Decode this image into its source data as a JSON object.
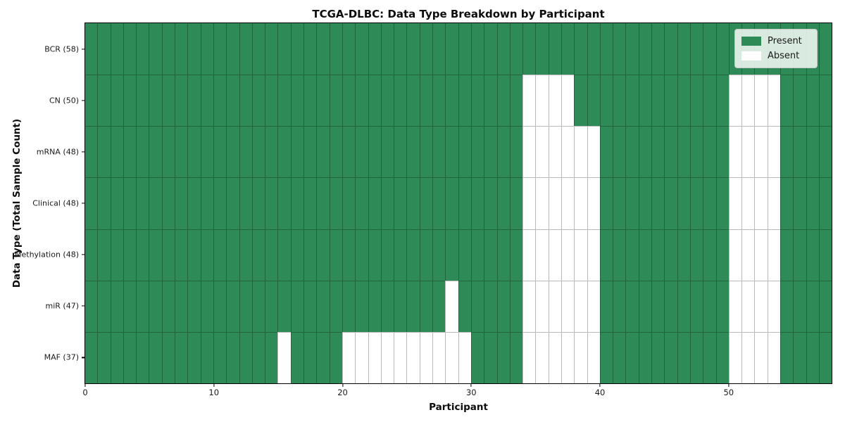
{
  "title": "TCGA-DLBC: Data Type Breakdown by Participant",
  "xlabel": "Participant",
  "ylabel": "Data Type (Total Sample Count)",
  "legend": {
    "present_label": "Present",
    "absent_label": "Absent"
  },
  "colors": {
    "present": "#2E8B57",
    "absent": "#FFFFFF",
    "grid": "rgba(0,0,0,0.27)"
  },
  "chart_data": {
    "type": "heatmap",
    "title": "TCGA-DLBC: Data Type Breakdown by Participant",
    "xlabel": "Participant",
    "ylabel": "Data Type (Total Sample Count)",
    "x_range": [
      0,
      58
    ],
    "x_ticks": [
      0,
      10,
      20,
      30,
      40,
      50
    ],
    "grid": true,
    "legend_position": "upper right",
    "legend": [
      {
        "label": "Present",
        "color": "#2E8B57"
      },
      {
        "label": "Absent",
        "color": "#FFFFFF"
      }
    ],
    "value_encoding": {
      "present": 1,
      "absent": 0
    },
    "rows": [
      {
        "name": "BCR",
        "label": "BCR (58)",
        "total_samples": 58,
        "absent_participants": []
      },
      {
        "name": "CN",
        "label": "CN (50)",
        "total_samples": 50,
        "absent_participants": [
          34,
          35,
          36,
          37,
          50,
          51,
          52,
          53
        ]
      },
      {
        "name": "mRNA",
        "label": "mRNA (48)",
        "total_samples": 48,
        "absent_participants": [
          34,
          35,
          36,
          37,
          38,
          39,
          50,
          51,
          52,
          53
        ]
      },
      {
        "name": "Clinical",
        "label": "Clinical (48)",
        "total_samples": 48,
        "absent_participants": [
          34,
          35,
          36,
          37,
          38,
          39,
          50,
          51,
          52,
          53
        ]
      },
      {
        "name": "Methylation",
        "label": "Methylation (48)",
        "total_samples": 48,
        "absent_participants": [
          34,
          35,
          36,
          37,
          38,
          39,
          50,
          51,
          52,
          53
        ]
      },
      {
        "name": "miR",
        "label": "miR (47)",
        "total_samples": 47,
        "absent_participants": [
          28,
          34,
          35,
          36,
          37,
          38,
          39,
          50,
          51,
          52,
          53
        ]
      },
      {
        "name": "MAF",
        "label": "MAF (37)",
        "total_samples": 37,
        "absent_participants": [
          15,
          20,
          21,
          22,
          23,
          24,
          25,
          26,
          27,
          28,
          29,
          34,
          35,
          36,
          37,
          38,
          39,
          50,
          51,
          52,
          53
        ]
      }
    ]
  }
}
